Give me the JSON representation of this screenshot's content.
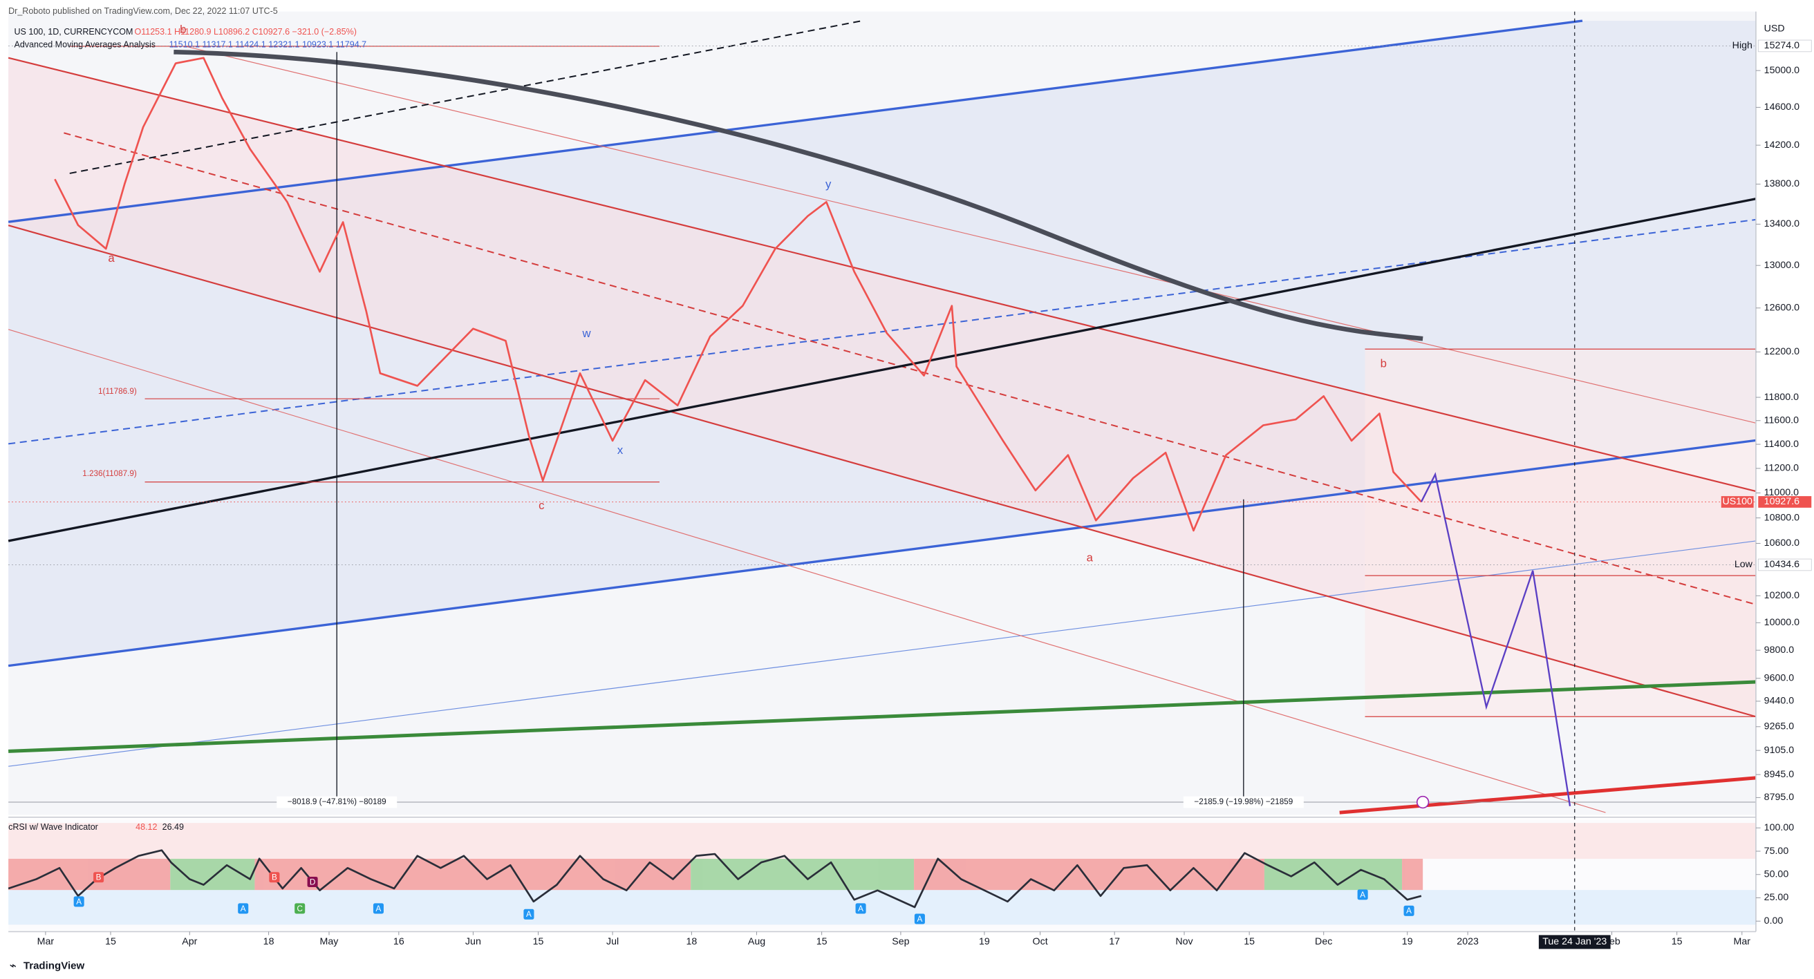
{
  "header": {
    "publisher": "Dr_Roboto published on TradingView.com, Dec 22, 2022 11:07 UTC-5",
    "symbol": "US 100, 1D, CURRENCYCOM",
    "ohlc": "O11253.1 H11280.9 L10896.2 C10927.6 −321.0 (−2.85%)",
    "indicator": "Advanced Moving Averages Analysis",
    "indicator_values": "11510.1 11317.1 11424.1 12321.1 10923.1 11794.7",
    "currency": "USD"
  },
  "footer": {
    "brand": "TradingView"
  },
  "chart_data": [
    {
      "type": "line",
      "log_scale": true,
      "grid": false,
      "xlim": [
        51,
        427
      ],
      "ylim": [
        8684,
        15664
      ],
      "xticks": [
        {
          "value": 59,
          "label": "Mar"
        },
        {
          "value": 73,
          "label": "15"
        },
        {
          "value": 90,
          "label": "Apr"
        },
        {
          "value": 107,
          "label": "18"
        },
        {
          "value": 120,
          "label": "May"
        },
        {
          "value": 135,
          "label": "16"
        },
        {
          "value": 151,
          "label": "Jun"
        },
        {
          "value": 165,
          "label": "15"
        },
        {
          "value": 181,
          "label": "Jul"
        },
        {
          "value": 198,
          "label": "18"
        },
        {
          "value": 212,
          "label": "Aug"
        },
        {
          "value": 226,
          "label": "15"
        },
        {
          "value": 243,
          "label": "Sep"
        },
        {
          "value": 261,
          "label": "19"
        },
        {
          "value": 273,
          "label": "Oct"
        },
        {
          "value": 289,
          "label": "17"
        },
        {
          "value": 304,
          "label": "Nov"
        },
        {
          "value": 318,
          "label": "15"
        },
        {
          "value": 334,
          "label": "Dec"
        },
        {
          "value": 352,
          "label": "19"
        },
        {
          "value": 365,
          "label": "2023"
        },
        {
          "value": 396,
          "label": "Feb"
        },
        {
          "value": 410,
          "label": "15"
        },
        {
          "value": 424,
          "label": "Mar"
        }
      ],
      "yticks": [
        {
          "value": 15000,
          "label": "15000.0"
        },
        {
          "value": 14600,
          "label": "14600.0"
        },
        {
          "value": 14200,
          "label": "14200.0"
        },
        {
          "value": 13800,
          "label": "13800.0"
        },
        {
          "value": 13400,
          "label": "13400.0"
        },
        {
          "value": 13000,
          "label": "13000.0"
        },
        {
          "value": 12600,
          "label": "12600.0"
        },
        {
          "value": 12200,
          "label": "12200.0"
        },
        {
          "value": 11800,
          "label": "11800.0"
        },
        {
          "value": 11600,
          "label": "11600.0"
        },
        {
          "value": 11400,
          "label": "11400.0"
        },
        {
          "value": 11200,
          "label": "11200.0"
        },
        {
          "value": 11000,
          "label": "11000.0"
        },
        {
          "value": 10800,
          "label": "10800.0"
        },
        {
          "value": 10600,
          "label": "10600.0"
        },
        {
          "value": 10200,
          "label": "10200.0"
        },
        {
          "value": 10000,
          "label": "10000.0"
        },
        {
          "value": 9800,
          "label": "9800.0"
        },
        {
          "value": 9600,
          "label": "9600.0"
        },
        {
          "value": 9440,
          "label": "9440.0"
        },
        {
          "value": 9265,
          "label": "9265.0"
        },
        {
          "value": 9105,
          "label": "9105.0"
        },
        {
          "value": 8945,
          "label": "8945.0"
        },
        {
          "value": 8795,
          "label": "8795.0"
        }
      ],
      "x": [
        61,
        66,
        72,
        76,
        80,
        87,
        93,
        97,
        103,
        111,
        118,
        123,
        128,
        131,
        139,
        151,
        158,
        163,
        166,
        174,
        181,
        188,
        195,
        202,
        209,
        216,
        223,
        227,
        233,
        240,
        248,
        254,
        255,
        265,
        272,
        279,
        285,
        293,
        300,
        306,
        313,
        321,
        328,
        334,
        340,
        346,
        349,
        355
      ],
      "series": [
        {
          "name": "US100",
          "color": "#ef5350",
          "values": [
            13850,
            13390,
            13160,
            13800,
            14390,
            15080,
            15140,
            14700,
            14160,
            13620,
            12940,
            13420,
            12570,
            12010,
            11900,
            12410,
            12300,
            11470,
            11100,
            12010,
            11430,
            11950,
            11730,
            12340,
            12620,
            13160,
            13480,
            13620,
            12940,
            12370,
            11990,
            12620,
            12070,
            11430,
            11020,
            11310,
            10780,
            11120,
            11330,
            10700,
            11310,
            11560,
            11610,
            11810,
            11430,
            11660,
            11170,
            10927.6
          ]
        }
      ],
      "projection": {
        "color": "#5b3fc4",
        "x": [
          355,
          358,
          369,
          379,
          387
        ],
        "values": [
          10927.6,
          11150,
          9400,
          10390,
          8740
        ]
      },
      "last_price": {
        "name": "US100",
        "value": 10927.6,
        "label": "10927.6",
        "color": "#ef5350"
      },
      "price_markers": [
        {
          "name": "High",
          "value": 15274,
          "label": "15274.0"
        },
        {
          "name": "Low",
          "value": 10434.6,
          "label": "10434.6"
        }
      ],
      "crosshair": {
        "value": 388,
        "label": "Tue 24 Jan '23"
      },
      "annotations": [
        "a",
        "b",
        "c",
        "w",
        "x",
        "y",
        "a",
        "b"
      ],
      "fib_labels": [
        "1(11786.9)",
        "1.236(11087.9)"
      ],
      "measurements": [
        "−8018.9 (−47.81%) −80189",
        "−2185.9 (−19.98%) −21859"
      ]
    },
    {
      "type": "line",
      "title": "cRSI w/ Wave Indicator",
      "legend_values": [
        48.12,
        26.49
      ],
      "xlim": [
        51,
        427
      ],
      "ylim": [
        -10,
        109
      ],
      "yticks": [
        {
          "value": 100,
          "label": "100.00"
        },
        {
          "value": 75,
          "label": "75.00"
        },
        {
          "value": 50,
          "label": "50.00"
        },
        {
          "value": 25,
          "label": "25.00"
        },
        {
          "value": 0,
          "label": "0.00"
        }
      ],
      "x": [
        51,
        57,
        62,
        66,
        70,
        74,
        79,
        84,
        86,
        90,
        93,
        98,
        103,
        105,
        110,
        114,
        118,
        124,
        129,
        134,
        139,
        144,
        149,
        154,
        159,
        164,
        169,
        174,
        179,
        184,
        189,
        194,
        199,
        203,
        208,
        213,
        218,
        223,
        228,
        233,
        238,
        246,
        251,
        256,
        261,
        266,
        271,
        276,
        281,
        286,
        291,
        296,
        301,
        306,
        311,
        317,
        322,
        327,
        332,
        337,
        342,
        347,
        352,
        355
      ],
      "series": [
        {
          "name": "cRSI",
          "color": "#2a2e39",
          "values": [
            35,
            45,
            57,
            27,
            45,
            57,
            70,
            76,
            63,
            45,
            39,
            60,
            45,
            67,
            35,
            57,
            33,
            57,
            45,
            35,
            70,
            57,
            70,
            45,
            60,
            21,
            39,
            70,
            45,
            33,
            63,
            45,
            70,
            72,
            45,
            63,
            70,
            45,
            63,
            23,
            33,
            15,
            67,
            45,
            33,
            21,
            45,
            33,
            60,
            27,
            57,
            60,
            33,
            57,
            33,
            73,
            60,
            48,
            63,
            39,
            55,
            45,
            23,
            27
          ]
        }
      ],
      "signals": [
        "A",
        "B",
        "A",
        "B",
        "C",
        "D",
        "A",
        "A",
        "A",
        "A",
        "A",
        "A"
      ]
    }
  ]
}
